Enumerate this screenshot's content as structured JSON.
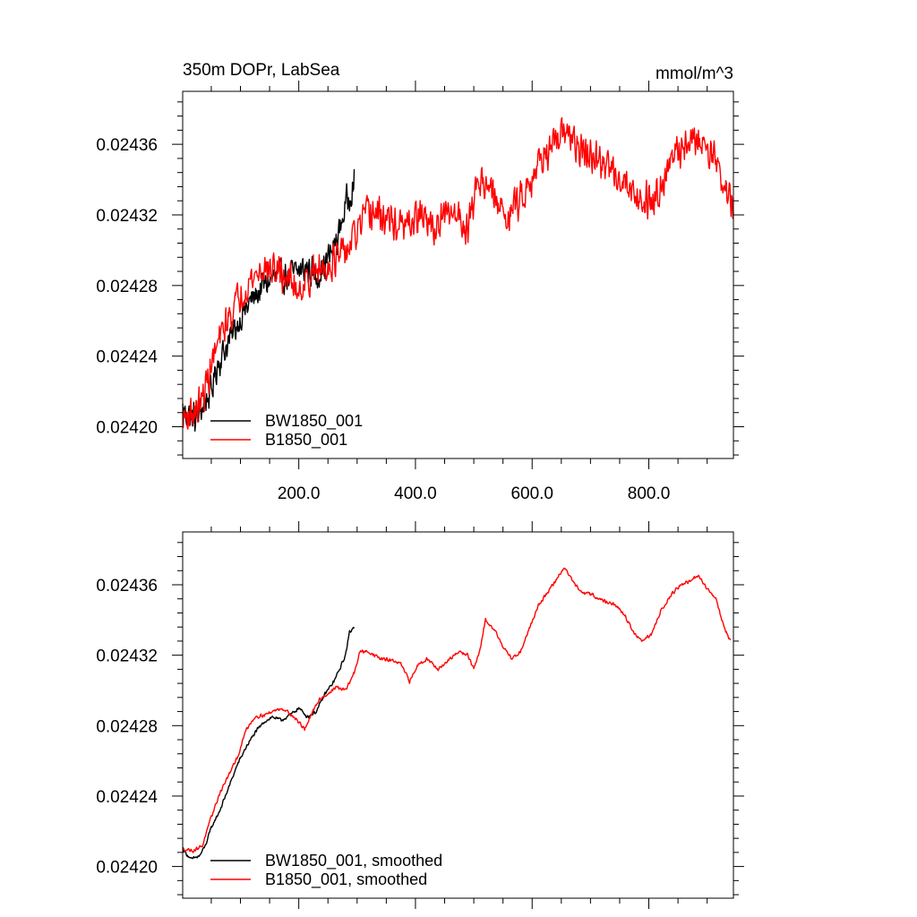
{
  "colors": {
    "background": "#ffffff",
    "axes": "#000000"
  },
  "chart_data": [
    {
      "type": "line",
      "title": "350m DOPr, LabSea",
      "units": "mmol/m^3",
      "xlim": [
        1,
        945
      ],
      "ylim": [
        0.024182,
        0.02439
      ],
      "x_ticks": [
        200,
        400,
        600,
        800
      ],
      "x_tick_labels": [
        "200.0",
        "400.0",
        "600.0",
        "800.0"
      ],
      "x_tick_labels_shown": true,
      "y_ticks": [
        0.0242,
        0.02424,
        0.02428,
        0.02432,
        0.02436
      ],
      "y_tick_labels": [
        "0.02420",
        "0.02424",
        "0.02428",
        "0.02432",
        "0.02436"
      ],
      "legend_position": "bottom-left",
      "series": [
        {
          "name": "BW1850_001",
          "color": "#000000",
          "noise": 1.1e-05,
          "points": [
            [
              1,
              0.02421
            ],
            [
              15,
              0.024205
            ],
            [
              25,
              0.024205
            ],
            [
              40,
              0.024215
            ],
            [
              50,
              0.02422
            ],
            [
              60,
              0.024235
            ],
            [
              75,
              0.024245
            ],
            [
              90,
              0.024255
            ],
            [
              100,
              0.024262
            ],
            [
              120,
              0.024272
            ],
            [
              140,
              0.02428
            ],
            [
              160,
              0.024285
            ],
            [
              180,
              0.024285
            ],
            [
              200,
              0.024288
            ],
            [
              215,
              0.02429
            ],
            [
              230,
              0.024285
            ],
            [
              250,
              0.024295
            ],
            [
              265,
              0.024305
            ],
            [
              280,
              0.024325
            ],
            [
              295,
              0.02434
            ]
          ]
        },
        {
          "name": "B1850_001",
          "color": "#ff0000",
          "noise": 1.2e-05,
          "points": [
            [
              1,
              0.024205
            ],
            [
              20,
              0.024208
            ],
            [
              35,
              0.024215
            ],
            [
              50,
              0.024235
            ],
            [
              65,
              0.02425
            ],
            [
              80,
              0.024262
            ],
            [
              100,
              0.024275
            ],
            [
              120,
              0.024284
            ],
            [
              140,
              0.02429
            ],
            [
              160,
              0.024288
            ],
            [
              180,
              0.024285
            ],
            [
              200,
              0.024278
            ],
            [
              220,
              0.024285
            ],
            [
              250,
              0.024292
            ],
            [
              280,
              0.024298
            ],
            [
              300,
              0.02431
            ],
            [
              320,
              0.024322
            ],
            [
              350,
              0.024318
            ],
            [
              380,
              0.024312
            ],
            [
              410,
              0.02432
            ],
            [
              430,
              0.024312
            ],
            [
              450,
              0.024318
            ],
            [
              470,
              0.024322
            ],
            [
              490,
              0.024312
            ],
            [
              505,
              0.024338
            ],
            [
              520,
              0.02434
            ],
            [
              540,
              0.024325
            ],
            [
              560,
              0.02432
            ],
            [
              580,
              0.02433
            ],
            [
              600,
              0.024342
            ],
            [
              620,
              0.024355
            ],
            [
              640,
              0.024358
            ],
            [
              660,
              0.02437
            ],
            [
              675,
              0.024358
            ],
            [
              690,
              0.024355
            ],
            [
              710,
              0.02435
            ],
            [
              730,
              0.024348
            ],
            [
              750,
              0.024342
            ],
            [
              770,
              0.024335
            ],
            [
              790,
              0.024328
            ],
            [
              810,
              0.02433
            ],
            [
              830,
              0.024345
            ],
            [
              850,
              0.024355
            ],
            [
              870,
              0.024362
            ],
            [
              890,
              0.024362
            ],
            [
              910,
              0.024355
            ],
            [
              930,
              0.024335
            ],
            [
              945,
              0.024325
            ]
          ]
        }
      ]
    },
    {
      "type": "line",
      "title": "",
      "units": "",
      "xlim": [
        1,
        945
      ],
      "ylim": [
        0.024182,
        0.02439
      ],
      "x_ticks": [
        200,
        400,
        600,
        800
      ],
      "x_tick_labels": [],
      "x_tick_labels_shown": false,
      "y_ticks": [
        0.0242,
        0.02424,
        0.02428,
        0.02432,
        0.02436
      ],
      "y_tick_labels": [
        "0.02420",
        "0.02424",
        "0.02428",
        "0.02432",
        "0.02436"
      ],
      "legend_position": "bottom-left",
      "series": [
        {
          "name": "BW1850_001, smoothed",
          "color": "#000000",
          "noise": 1.2e-06,
          "points": [
            [
              1,
              0.02421
            ],
            [
              15,
              0.024204
            ],
            [
              30,
              0.024206
            ],
            [
              40,
              0.024212
            ],
            [
              50,
              0.024222
            ],
            [
              65,
              0.024232
            ],
            [
              80,
              0.024245
            ],
            [
              95,
              0.024258
            ],
            [
              110,
              0.024268
            ],
            [
              125,
              0.024276
            ],
            [
              140,
              0.024282
            ],
            [
              155,
              0.024285
            ],
            [
              170,
              0.024283
            ],
            [
              185,
              0.024286
            ],
            [
              200,
              0.02429
            ],
            [
              215,
              0.024285
            ],
            [
              230,
              0.024288
            ],
            [
              245,
              0.024298
            ],
            [
              260,
              0.024305
            ],
            [
              270,
              0.024312
            ],
            [
              280,
              0.02432
            ],
            [
              287,
              0.024333
            ],
            [
              295,
              0.024336
            ]
          ]
        },
        {
          "name": "B1850_001, smoothed",
          "color": "#ff0000",
          "noise": 1.2e-06,
          "points": [
            [
              1,
              0.02421
            ],
            [
              20,
              0.024209
            ],
            [
              35,
              0.024212
            ],
            [
              50,
              0.024228
            ],
            [
              65,
              0.024242
            ],
            [
              80,
              0.024252
            ],
            [
              95,
              0.024262
            ],
            [
              110,
              0.024278
            ],
            [
              125,
              0.024285
            ],
            [
              140,
              0.024286
            ],
            [
              155,
              0.024288
            ],
            [
              170,
              0.02429
            ],
            [
              185,
              0.024287
            ],
            [
              200,
              0.024282
            ],
            [
              210,
              0.024278
            ],
            [
              220,
              0.024285
            ],
            [
              235,
              0.024295
            ],
            [
              250,
              0.024298
            ],
            [
              265,
              0.024302
            ],
            [
              280,
              0.0243
            ],
            [
              295,
              0.02431
            ],
            [
              305,
              0.024322
            ],
            [
              320,
              0.024322
            ],
            [
              340,
              0.024318
            ],
            [
              360,
              0.024317
            ],
            [
              375,
              0.024315
            ],
            [
              390,
              0.024305
            ],
            [
              405,
              0.024315
            ],
            [
              420,
              0.024318
            ],
            [
              440,
              0.024312
            ],
            [
              460,
              0.024318
            ],
            [
              475,
              0.024322
            ],
            [
              490,
              0.02432
            ],
            [
              500,
              0.024312
            ],
            [
              510,
              0.024322
            ],
            [
              520,
              0.02434
            ],
            [
              535,
              0.024335
            ],
            [
              550,
              0.024325
            ],
            [
              565,
              0.024318
            ],
            [
              580,
              0.024322
            ],
            [
              595,
              0.024335
            ],
            [
              610,
              0.024348
            ],
            [
              625,
              0.024355
            ],
            [
              640,
              0.024362
            ],
            [
              655,
              0.02437
            ],
            [
              670,
              0.024362
            ],
            [
              685,
              0.024355
            ],
            [
              700,
              0.024355
            ],
            [
              715,
              0.024352
            ],
            [
              730,
              0.02435
            ],
            [
              745,
              0.024348
            ],
            [
              760,
              0.024342
            ],
            [
              775,
              0.024332
            ],
            [
              790,
              0.024328
            ],
            [
              805,
              0.024332
            ],
            [
              820,
              0.024345
            ],
            [
              840,
              0.024355
            ],
            [
              855,
              0.02436
            ],
            [
              870,
              0.024362
            ],
            [
              885,
              0.024365
            ],
            [
              900,
              0.024358
            ],
            [
              915,
              0.024352
            ],
            [
              930,
              0.024335
            ],
            [
              940,
              0.024328
            ]
          ]
        }
      ]
    }
  ]
}
